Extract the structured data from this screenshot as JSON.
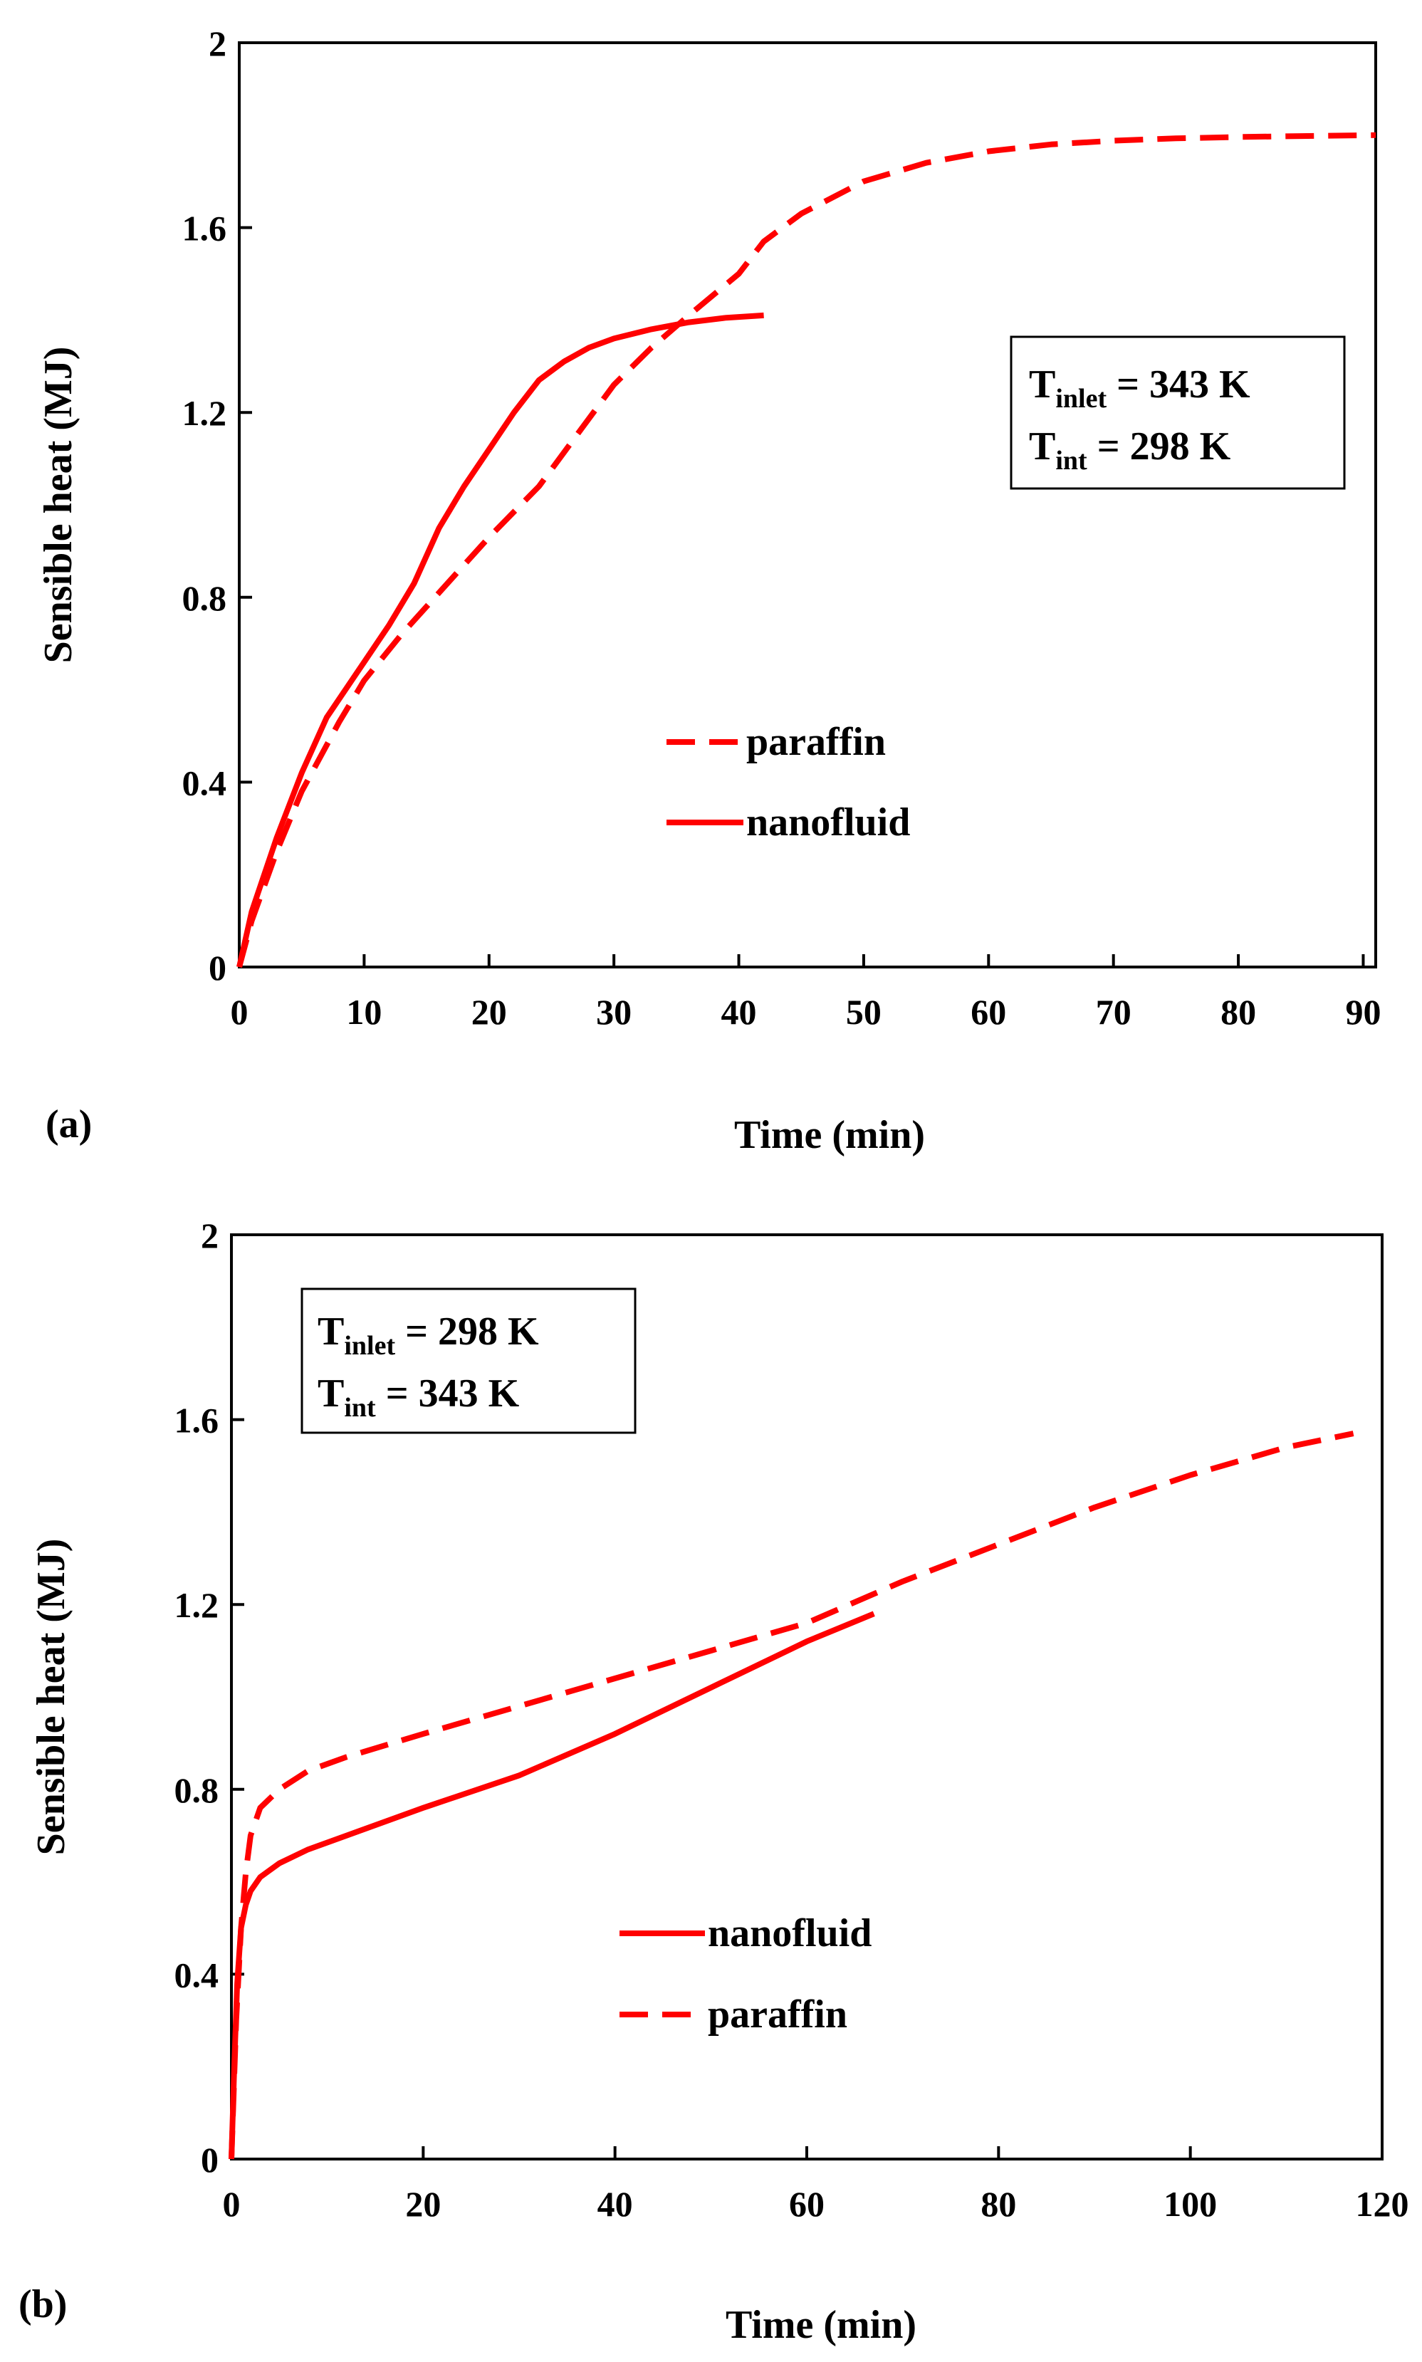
{
  "chart_data": [
    {
      "panel_label": "(a)",
      "type": "line",
      "title": "",
      "xlabel": "Time (min)",
      "ylabel": "Sensible heat (MJ)",
      "xlim": [
        0,
        91
      ],
      "ylim": [
        0,
        2
      ],
      "xticks": [
        0,
        10,
        20,
        30,
        40,
        50,
        60,
        70,
        80,
        90
      ],
      "yticks": [
        0,
        0.4,
        0.8,
        1.2,
        1.6,
        2
      ],
      "xtick_labels": [
        "0",
        "10",
        "20",
        "30",
        "40",
        "50",
        "60",
        "70",
        "80",
        "90"
      ],
      "ytick_labels": [
        "0",
        "0.4",
        "0.8",
        "1.2",
        "1.6",
        "2"
      ],
      "grid": false,
      "legend_position": "center",
      "legend_order": [
        "paraffin",
        "nanofluid"
      ],
      "annotation": {
        "line1": {
          "base": "T",
          "sub": "inlet",
          "rest": " = 343 K"
        },
        "line2": {
          "base": "T",
          "sub": "int",
          "rest": " = 298 K"
        },
        "position": "top-right"
      },
      "series": [
        {
          "name": "paraffin",
          "style": "dashed",
          "color": "#ff0000",
          "x": [
            0,
            1,
            3,
            5,
            8,
            10,
            13,
            16,
            20,
            24,
            27,
            30,
            33,
            36,
            40,
            42,
            45,
            50,
            55,
            60,
            65,
            70,
            75,
            80,
            85,
            91
          ],
          "y": [
            0,
            0.1,
            0.25,
            0.38,
            0.53,
            0.62,
            0.72,
            0.81,
            0.93,
            1.04,
            1.15,
            1.26,
            1.34,
            1.41,
            1.5,
            1.57,
            1.63,
            1.7,
            1.74,
            1.765,
            1.78,
            1.788,
            1.793,
            1.796,
            1.798,
            1.8
          ]
        },
        {
          "name": "nanofluid",
          "style": "solid",
          "color": "#ff0000",
          "x": [
            0,
            1,
            3,
            5,
            7,
            10,
            12,
            14,
            16,
            18,
            20,
            22,
            24,
            26,
            28,
            30,
            33,
            36,
            39,
            42
          ],
          "y": [
            0,
            0.12,
            0.28,
            0.42,
            0.54,
            0.66,
            0.74,
            0.83,
            0.95,
            1.04,
            1.12,
            1.2,
            1.27,
            1.31,
            1.34,
            1.36,
            1.38,
            1.395,
            1.405,
            1.41
          ]
        }
      ]
    },
    {
      "panel_label": "(b)",
      "type": "line",
      "title": "",
      "xlabel": "Time (min)",
      "ylabel": "Sensible heat (MJ)",
      "xlim": [
        0,
        120
      ],
      "ylim": [
        0,
        2
      ],
      "xticks": [
        0,
        20,
        40,
        60,
        80,
        100,
        120
      ],
      "yticks": [
        0,
        0.4,
        0.8,
        1.2,
        1.6,
        2
      ],
      "xtick_labels": [
        "0",
        "20",
        "40",
        "60",
        "80",
        "100",
        "120"
      ],
      "ytick_labels": [
        "0",
        "0.4",
        "0.8",
        "1.2",
        "1.6",
        "2"
      ],
      "grid": false,
      "legend_position": "bottom-center",
      "legend_order": [
        "nanofluid",
        "paraffin"
      ],
      "annotation": {
        "line1": {
          "base": "T",
          "sub": "inlet",
          "rest": " = 298 K"
        },
        "line2": {
          "base": "T",
          "sub": "int",
          "rest": " = 343 K"
        },
        "position": "top-left"
      },
      "series": [
        {
          "name": "paraffin",
          "style": "dashed",
          "color": "#ff0000",
          "x": [
            0,
            0.5,
            1,
            1.5,
            2,
            3,
            5,
            8,
            12,
            20,
            30,
            40,
            50,
            60,
            70,
            80,
            90,
            100,
            110,
            117
          ],
          "y": [
            0,
            0.3,
            0.5,
            0.62,
            0.7,
            0.76,
            0.8,
            0.84,
            0.87,
            0.92,
            0.98,
            1.04,
            1.1,
            1.16,
            1.25,
            1.33,
            1.41,
            1.48,
            1.54,
            1.57
          ]
        },
        {
          "name": "nanofluid",
          "style": "solid",
          "color": "#ff0000",
          "x": [
            0,
            0.3,
            0.6,
            1,
            1.5,
            2,
            3,
            5,
            8,
            12,
            20,
            30,
            40,
            50,
            60,
            67
          ],
          "y": [
            0,
            0.2,
            0.38,
            0.5,
            0.55,
            0.58,
            0.61,
            0.64,
            0.67,
            0.7,
            0.76,
            0.83,
            0.92,
            1.02,
            1.12,
            1.18
          ]
        }
      ]
    }
  ]
}
